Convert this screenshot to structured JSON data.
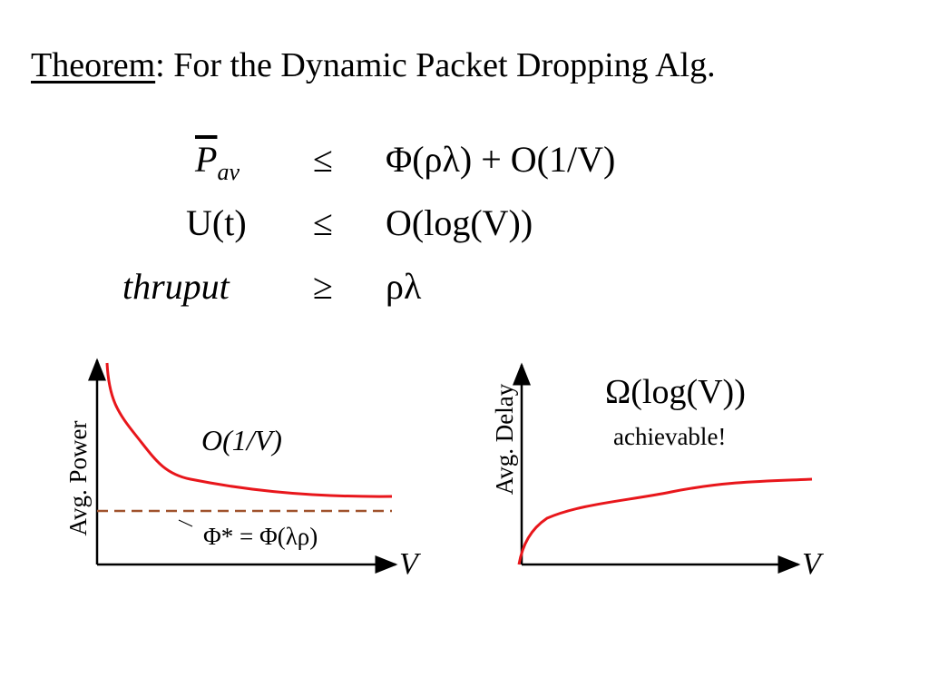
{
  "title": {
    "underlined": "Theorem",
    "rest": ": For the Dynamic Packet Dropping Alg."
  },
  "equations": [
    {
      "lhs": "P",
      "lhs_sub": "av",
      "relation": "≤",
      "rhs": "Φ(ρλ) + O(1/V)"
    },
    {
      "lhs": "U(t)",
      "relation": "≤",
      "rhs": "O(log(V))"
    },
    {
      "lhs": "thruput",
      "relation": "≥",
      "rhs": "ρλ"
    }
  ],
  "plots": [
    {
      "y_label": "Avg. Power",
      "x_label": "V",
      "annotation": "O(1/V)",
      "baseline_label": "Φ* = Φ(λρ)"
    },
    {
      "y_label": "Avg. Delay",
      "x_label": "V",
      "annotation": "Ω(log(V))",
      "note": "achievable!"
    }
  ]
}
